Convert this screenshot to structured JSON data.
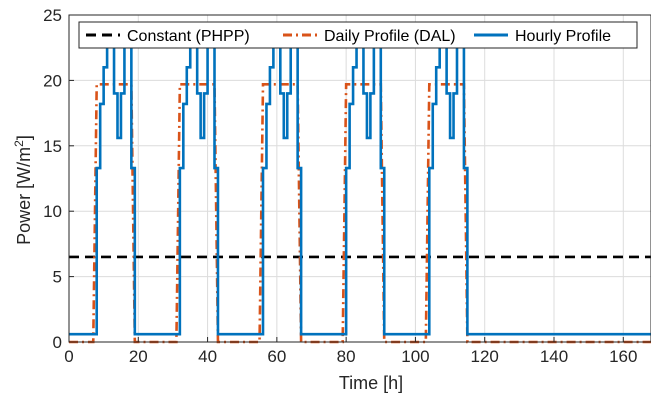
{
  "chart_data": {
    "type": "line",
    "title": "",
    "xlabel": "Time [h]",
    "ylabel_main": "Power [W/m",
    "ylabel_sup": "2",
    "ylabel_close": "]",
    "xlim": [
      0,
      168
    ],
    "ylim": [
      0,
      25
    ],
    "xticks": [
      0,
      20,
      40,
      60,
      80,
      100,
      120,
      140,
      160
    ],
    "yticks": [
      0,
      5,
      10,
      15,
      20,
      25
    ],
    "grid": true,
    "legend_position": "top",
    "series": [
      {
        "name": "Constant (PHPP)",
        "color": "#000000",
        "dash": "dashed",
        "x": [
          0,
          168
        ],
        "y": [
          6.5,
          6.5
        ]
      },
      {
        "name": "Daily Profile (DAL)",
        "color": "#d95319",
        "dash": "dashdot",
        "x": [
          0,
          7,
          8,
          18,
          19,
          31,
          32,
          42,
          43,
          55,
          56,
          66,
          67,
          79,
          80,
          90,
          91,
          103,
          104,
          114,
          115,
          168
        ],
        "y": [
          0,
          0,
          19.7,
          19.7,
          0,
          0,
          19.7,
          19.7,
          0,
          0,
          19.7,
          19.7,
          0,
          0,
          19.7,
          19.7,
          0,
          0,
          19.7,
          19.7,
          0,
          0
        ]
      },
      {
        "name": "Hourly Profile",
        "color": "#0072bd",
        "dash": "solid",
        "step_start": 0,
        "step_values": [
          0.6,
          0.6,
          0.6,
          0.6,
          0.6,
          0.6,
          0.6,
          0.6,
          13.3,
          18.2,
          21.0,
          22.8,
          22.8,
          19.0,
          15.6,
          19.0,
          22.8,
          22.8,
          13.3,
          0.6,
          0.6,
          0.6,
          0.6,
          0.6,
          0.6,
          0.6,
          0.6,
          0.6,
          0.6,
          0.6,
          0.6,
          0.6,
          13.3,
          18.2,
          21.0,
          22.8,
          22.8,
          19.0,
          15.6,
          19.0,
          22.8,
          22.8,
          13.3,
          0.6,
          0.6,
          0.6,
          0.6,
          0.6,
          0.6,
          0.6,
          0.6,
          0.6,
          0.6,
          0.6,
          0.6,
          0.6,
          13.3,
          18.2,
          21.0,
          22.8,
          22.8,
          19.0,
          15.6,
          19.0,
          22.8,
          22.8,
          13.3,
          0.6,
          0.6,
          0.6,
          0.6,
          0.6,
          0.6,
          0.6,
          0.6,
          0.6,
          0.6,
          0.6,
          0.6,
          0.6,
          13.3,
          18.2,
          21.0,
          22.8,
          22.8,
          19.0,
          15.6,
          19.0,
          22.8,
          22.8,
          13.3,
          0.6,
          0.6,
          0.6,
          0.6,
          0.6,
          0.6,
          0.6,
          0.6,
          0.6,
          0.6,
          0.6,
          0.6,
          0.6,
          13.3,
          18.2,
          21.0,
          22.8,
          22.8,
          19.0,
          15.6,
          19.0,
          22.8,
          22.8,
          13.3,
          0.6,
          0.6,
          0.6,
          0.6,
          0.6,
          0.6,
          0.6,
          0.6,
          0.6,
          0.6,
          0.6,
          0.6,
          0.6,
          0.6,
          0.6,
          0.6,
          0.6,
          0.6,
          0.6,
          0.6,
          0.6,
          0.6,
          0.6,
          0.6,
          0.6,
          0.6,
          0.6,
          0.6,
          0.6,
          0.6,
          0.6,
          0.6,
          0.6,
          0.6,
          0.6,
          0.6,
          0.6,
          0.6,
          0.6,
          0.6,
          0.6,
          0.6,
          0.6,
          0.6,
          0.6,
          0.6,
          0.6,
          0.6,
          0.6,
          0.6,
          0.6,
          0.6,
          0.6,
          0.6,
          0.6,
          0.6
        ]
      }
    ]
  }
}
